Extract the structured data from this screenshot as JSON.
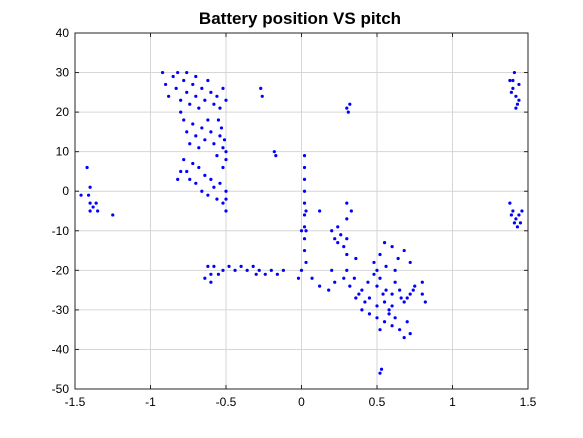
{
  "chart_data": {
    "type": "scatter",
    "title": "Battery position VS pitch",
    "xlabel": "",
    "ylabel": "",
    "xlim": [
      -1.5,
      1.5
    ],
    "ylim": [
      -50,
      40
    ],
    "grid": true,
    "legend": "none",
    "marker_color": "#0000ff",
    "x_ticks": [
      -1.5,
      -1,
      -0.5,
      0,
      0.5,
      1,
      1.5
    ],
    "x_tick_labels": [
      "-1.5",
      "-1",
      "-0.5",
      "0",
      "0.5",
      "1",
      "1.5"
    ],
    "y_ticks": [
      -50,
      -40,
      -30,
      -20,
      -10,
      0,
      10,
      20,
      30,
      40
    ],
    "y_tick_labels": [
      "-50",
      "-40",
      "-30",
      "-20",
      "-10",
      "0",
      "10",
      "20",
      "30",
      "40"
    ],
    "series": [
      {
        "points": [
          [
            -0.92,
            30
          ],
          [
            -0.9,
            27
          ],
          [
            -0.88,
            24
          ],
          [
            -0.85,
            29
          ],
          [
            -0.83,
            26
          ],
          [
            -0.8,
            23
          ],
          [
            -0.78,
            28
          ],
          [
            -0.76,
            25
          ],
          [
            -0.74,
            22
          ],
          [
            -0.72,
            27
          ],
          [
            -0.7,
            24
          ],
          [
            -0.68,
            21
          ],
          [
            -0.66,
            26
          ],
          [
            -0.64,
            23
          ],
          [
            -0.62,
            28
          ],
          [
            -0.6,
            25
          ],
          [
            -0.58,
            22
          ],
          [
            -0.56,
            24
          ],
          [
            -0.54,
            21
          ],
          [
            -0.52,
            26
          ],
          [
            -0.5,
            23
          ],
          [
            -0.82,
            30
          ],
          [
            -0.76,
            30
          ],
          [
            -0.7,
            29
          ],
          [
            -0.8,
            20
          ],
          [
            -0.78,
            18
          ],
          [
            -0.76,
            15
          ],
          [
            -0.74,
            12
          ],
          [
            -0.72,
            17
          ],
          [
            -0.7,
            14
          ],
          [
            -0.68,
            11
          ],
          [
            -0.66,
            16
          ],
          [
            -0.64,
            13
          ],
          [
            -0.62,
            18
          ],
          [
            -0.6,
            15
          ],
          [
            -0.58,
            12
          ],
          [
            -0.56,
            9
          ],
          [
            -0.54,
            14
          ],
          [
            -0.52,
            11
          ],
          [
            -0.5,
            8
          ],
          [
            -0.78,
            8
          ],
          [
            -0.76,
            5
          ],
          [
            -0.74,
            3
          ],
          [
            -0.72,
            7
          ],
          [
            -0.7,
            2
          ],
          [
            -0.68,
            6
          ],
          [
            -0.66,
            0
          ],
          [
            -0.64,
            4
          ],
          [
            -0.62,
            -1
          ],
          [
            -0.6,
            3
          ],
          [
            -0.58,
            1
          ],
          [
            -0.56,
            -2
          ],
          [
            -0.54,
            2
          ],
          [
            -0.52,
            -3
          ],
          [
            -0.5,
            -5
          ],
          [
            -0.8,
            5
          ],
          [
            -0.82,
            3
          ],
          [
            -0.55,
            18
          ],
          [
            -0.53,
            16
          ],
          [
            -0.51,
            13
          ],
          [
            -0.5,
            10
          ],
          [
            -0.52,
            6
          ],
          [
            -0.5,
            0
          ],
          [
            -0.5,
            -2
          ],
          [
            -0.27,
            26
          ],
          [
            -0.26,
            24
          ],
          [
            -0.18,
            10
          ],
          [
            -0.17,
            9
          ],
          [
            0.3,
            21
          ],
          [
            0.32,
            22
          ],
          [
            0.31,
            20
          ],
          [
            -1.42,
            6
          ],
          [
            -1.4,
            1
          ],
          [
            -1.41,
            -1
          ],
          [
            -1.4,
            -3
          ],
          [
            -1.38,
            -4
          ],
          [
            -1.36,
            -3
          ],
          [
            -1.4,
            -5
          ],
          [
            -1.35,
            -5
          ],
          [
            -1.46,
            -1
          ],
          [
            -1.25,
            -6
          ],
          [
            0.02,
            9
          ],
          [
            0.02,
            6
          ],
          [
            0.02,
            3
          ],
          [
            0.02,
            0
          ],
          [
            0.02,
            -3
          ],
          [
            0.02,
            -6
          ],
          [
            0.02,
            -9
          ],
          [
            0.02,
            -12
          ],
          [
            0.02,
            -15
          ],
          [
            0.03,
            -5
          ],
          [
            0.03,
            -10
          ],
          [
            0.03,
            -18
          ],
          [
            0.0,
            -10
          ],
          [
            0.0,
            -20
          ],
          [
            -0.02,
            -22
          ],
          [
            0.12,
            -5
          ],
          [
            0.07,
            -22
          ],
          [
            -0.62,
            -19
          ],
          [
            -0.58,
            -19
          ],
          [
            -0.55,
            -21
          ],
          [
            -0.52,
            -20
          ],
          [
            -0.48,
            -19
          ],
          [
            -0.44,
            -20
          ],
          [
            -0.4,
            -19
          ],
          [
            -0.36,
            -20
          ],
          [
            -0.32,
            -19
          ],
          [
            -0.28,
            -20
          ],
          [
            -0.24,
            -21
          ],
          [
            -0.2,
            -20
          ],
          [
            -0.16,
            -21
          ],
          [
            -0.6,
            -21
          ],
          [
            -0.64,
            -22
          ],
          [
            -0.6,
            -23
          ],
          [
            -0.3,
            -21
          ],
          [
            -0.12,
            -20
          ],
          [
            0.2,
            -10
          ],
          [
            0.22,
            -12
          ],
          [
            0.24,
            -13
          ],
          [
            0.26,
            -11
          ],
          [
            0.28,
            -14
          ],
          [
            0.3,
            -12
          ],
          [
            0.24,
            -9
          ],
          [
            0.3,
            -16
          ],
          [
            0.3,
            -3
          ],
          [
            0.33,
            -5
          ],
          [
            0.3,
            -7
          ],
          [
            0.36,
            -17
          ],
          [
            0.12,
            -24
          ],
          [
            0.18,
            -25
          ],
          [
            0.22,
            -23
          ],
          [
            0.28,
            -22
          ],
          [
            0.2,
            -20
          ],
          [
            0.3,
            -20
          ],
          [
            0.35,
            -22
          ],
          [
            0.4,
            -25
          ],
          [
            0.45,
            -27
          ],
          [
            0.5,
            -24
          ],
          [
            0.55,
            -28
          ],
          [
            0.6,
            -26
          ],
          [
            0.65,
            -25
          ],
          [
            0.7,
            -27
          ],
          [
            0.75,
            -24
          ],
          [
            0.8,
            -26
          ],
          [
            0.82,
            -28
          ],
          [
            0.32,
            -24
          ],
          [
            0.38,
            -26
          ],
          [
            0.44,
            -23
          ],
          [
            0.5,
            -29
          ],
          [
            0.56,
            -25
          ],
          [
            0.62,
            -23
          ],
          [
            0.68,
            -28
          ],
          [
            0.74,
            -25
          ],
          [
            0.8,
            -23
          ],
          [
            0.42,
            -28
          ],
          [
            0.48,
            -21
          ],
          [
            0.54,
            -26
          ],
          [
            0.6,
            -29
          ],
          [
            0.66,
            -27
          ],
          [
            0.72,
            -26
          ],
          [
            0.36,
            -27
          ],
          [
            0.52,
            -22
          ],
          [
            0.58,
            -30
          ],
          [
            0.48,
            -18
          ],
          [
            0.52,
            -16
          ],
          [
            0.56,
            -19
          ],
          [
            0.6,
            -14
          ],
          [
            0.64,
            -17
          ],
          [
            0.68,
            -15
          ],
          [
            0.72,
            -18
          ],
          [
            0.55,
            -13
          ],
          [
            0.62,
            -20
          ],
          [
            0.5,
            -20
          ],
          [
            0.45,
            -31
          ],
          [
            0.5,
            -32
          ],
          [
            0.55,
            -33
          ],
          [
            0.6,
            -34
          ],
          [
            0.65,
            -35
          ],
          [
            0.7,
            -33
          ],
          [
            0.72,
            -36
          ],
          [
            0.68,
            -37
          ],
          [
            0.58,
            -31
          ],
          [
            0.62,
            -32
          ],
          [
            0.4,
            -30
          ],
          [
            0.52,
            -35
          ],
          [
            0.52,
            -46
          ],
          [
            0.53,
            -45
          ],
          [
            1.38,
            28
          ],
          [
            1.4,
            26
          ],
          [
            1.42,
            24
          ],
          [
            1.44,
            27
          ],
          [
            1.41,
            30
          ],
          [
            1.43,
            22
          ],
          [
            1.39,
            25
          ],
          [
            1.42,
            21
          ],
          [
            1.44,
            23
          ],
          [
            1.4,
            28
          ],
          [
            1.38,
            -3
          ],
          [
            1.4,
            -5
          ],
          [
            1.42,
            -7
          ],
          [
            1.44,
            -6
          ],
          [
            1.46,
            -5
          ],
          [
            1.41,
            -8
          ],
          [
            1.43,
            -9
          ],
          [
            1.39,
            -6
          ],
          [
            1.45,
            -8
          ]
        ]
      }
    ]
  }
}
